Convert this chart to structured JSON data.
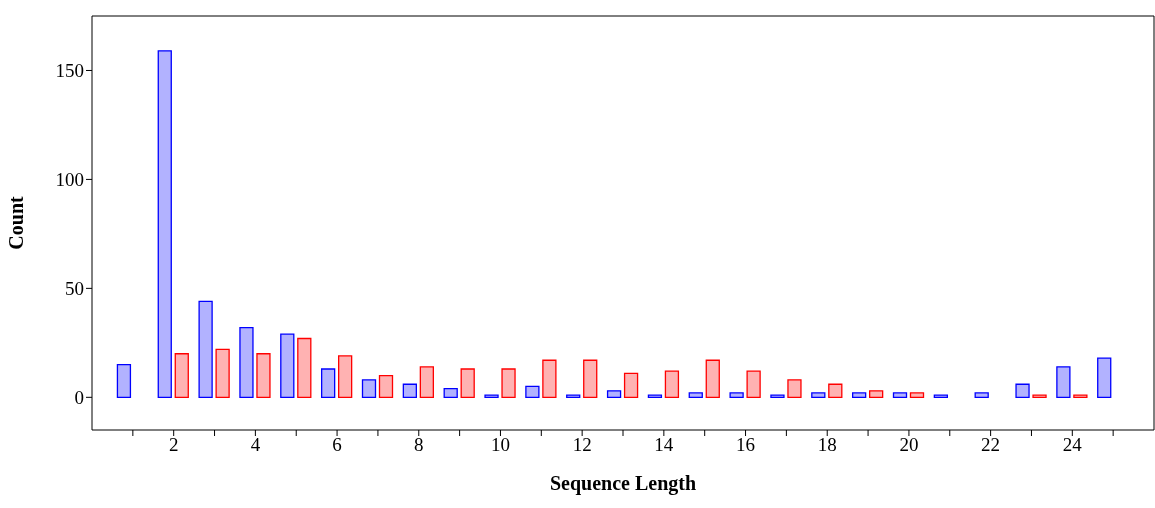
{
  "chart_data": {
    "type": "bar",
    "xlabel": "Sequence Length",
    "ylabel": "Count",
    "x": [
      1,
      2,
      3,
      4,
      5,
      6,
      7,
      8,
      9,
      10,
      11,
      12,
      13,
      14,
      15,
      16,
      17,
      18,
      19,
      20,
      21,
      22,
      23,
      24,
      25
    ],
    "series": [
      {
        "color": "#0000ff",
        "values": [
          15,
          159,
          44,
          32,
          29,
          13,
          8,
          6,
          4,
          1,
          5,
          1,
          3,
          1,
          2,
          2,
          1,
          2,
          2,
          2,
          1,
          2,
          6,
          14,
          18
        ]
      },
      {
        "color": "#ff0000",
        "values": [
          null,
          20,
          22,
          20,
          27,
          19,
          10,
          14,
          13,
          13,
          17,
          17,
          11,
          12,
          17,
          12,
          8,
          6,
          3,
          2,
          null,
          null,
          1,
          1,
          null
        ]
      }
    ],
    "xlim": [
      0,
      26
    ],
    "xticks": [
      {
        "value": 1,
        "label": null
      },
      2,
      {
        "value": 3,
        "label": null
      },
      4,
      {
        "value": 5,
        "label": null
      },
      6,
      {
        "value": 7,
        "label": null
      },
      8,
      {
        "value": 9,
        "label": null
      },
      10,
      {
        "value": 11,
        "label": null
      },
      12,
      {
        "value": 13,
        "label": null
      },
      14,
      {
        "value": 15,
        "label": null
      },
      16,
      {
        "value": 17,
        "label": null
      },
      18,
      {
        "value": 19,
        "label": null
      },
      20,
      {
        "value": 21,
        "label": null
      },
      22,
      {
        "value": 23,
        "label": null
      },
      24,
      {
        "value": 25,
        "label": null
      }
    ],
    "ylim": [
      -15,
      175
    ],
    "yticks": [
      0,
      50,
      100,
      150
    ],
    "grid": false,
    "legend": false
  }
}
